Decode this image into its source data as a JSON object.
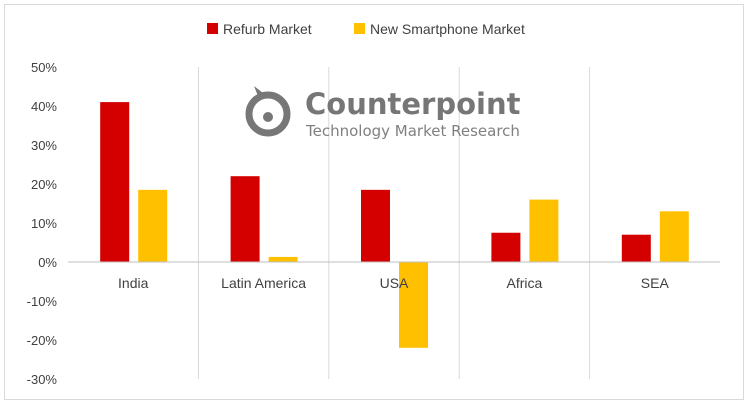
{
  "chart_data": {
    "type": "bar",
    "categories": [
      "India",
      "Latin America",
      "USA",
      "Africa",
      "SEA"
    ],
    "series": [
      {
        "name": "Refurb Market",
        "color": "#d40000",
        "values": [
          41,
          22,
          18.5,
          7.5,
          7
        ]
      },
      {
        "name": "New Smartphone Market",
        "color": "#ffc000",
        "values": [
          18.5,
          1.3,
          -22,
          16,
          13
        ]
      }
    ],
    "ylim": [
      -30,
      50
    ],
    "yticks": [
      "50%",
      "40%",
      "30%",
      "20%",
      "10%",
      "0%",
      "-10%",
      "-20%",
      "-30%"
    ],
    "y_tick_values": [
      50,
      40,
      30,
      20,
      10,
      0,
      -10,
      -20,
      -30
    ],
    "legend_position": "top-center",
    "vertical_separators": true
  },
  "watermark": {
    "name": "Counterpoint",
    "tagline": "Technology Market Research",
    "icon": "counterpoint-logo-icon"
  }
}
